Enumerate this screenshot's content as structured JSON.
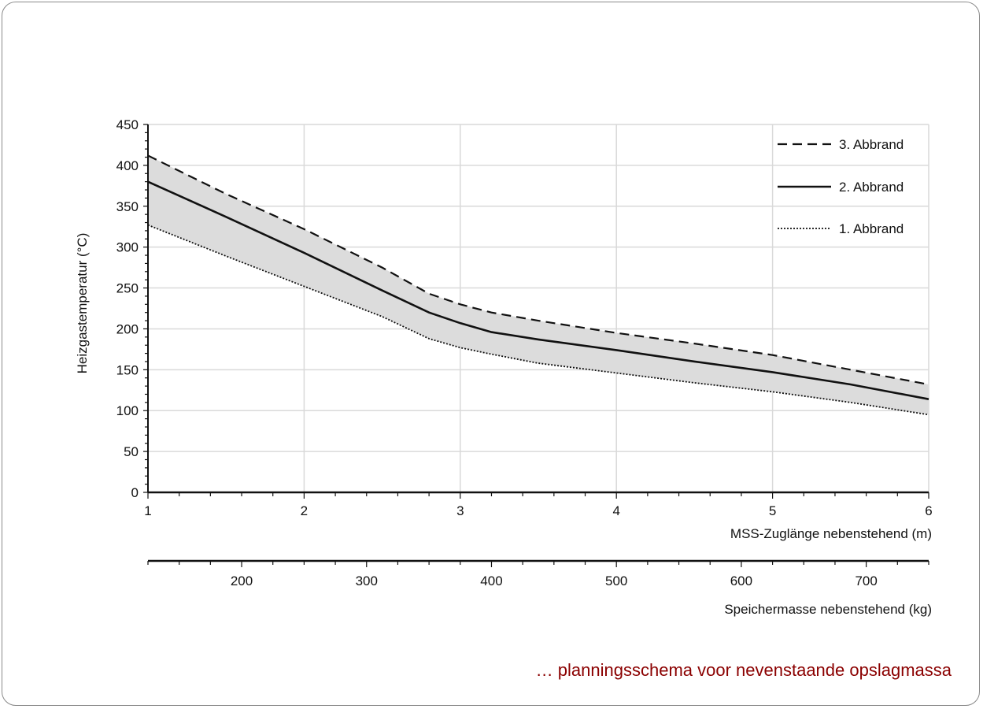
{
  "chart_data": {
    "type": "line",
    "ylabel": "Heizgastemperatur (°C)",
    "xlabel": "MSS-Zuglänge nebenstehend (m)",
    "x2label": "Speichermasse nebenstehend (kg)",
    "xlim": [
      1,
      6
    ],
    "ylim": [
      0,
      450
    ],
    "xticks": [
      "1",
      "2",
      "3",
      "4",
      "5",
      "6"
    ],
    "yticks": [
      "0",
      "50",
      "100",
      "150",
      "200",
      "250",
      "300",
      "350",
      "400",
      "450"
    ],
    "x2ticks": [
      "200",
      "300",
      "400",
      "500",
      "600",
      "700"
    ],
    "x2_range": [
      125,
      750
    ],
    "grid": true,
    "legend_position": "top-right",
    "band_between": [
      "1. Abbrand",
      "3. Abbrand"
    ],
    "series": [
      {
        "name": "3. Abbrand",
        "style": "dashed",
        "x": [
          1,
          1.5,
          2,
          2.5,
          2.8,
          3,
          3.2,
          3.5,
          4,
          4.5,
          5,
          5.5,
          6
        ],
        "y": [
          412,
          365,
          322,
          275,
          243,
          230,
          220,
          210,
          195,
          182,
          168,
          150,
          132
        ]
      },
      {
        "name": "2. Abbrand",
        "style": "solid",
        "x": [
          1,
          1.5,
          2,
          2.5,
          2.8,
          3,
          3.2,
          3.5,
          4,
          4.5,
          5,
          5.5,
          6
        ],
        "y": [
          380,
          337,
          293,
          247,
          220,
          207,
          196,
          187,
          174,
          160,
          147,
          132,
          114
        ]
      },
      {
        "name": "1. Abbrand",
        "style": "dotted",
        "x": [
          1,
          1.5,
          2,
          2.5,
          2.8,
          3,
          3.2,
          3.5,
          4,
          4.5,
          5,
          5.5,
          6
        ],
        "y": [
          327,
          289,
          252,
          215,
          188,
          177,
          169,
          158,
          146,
          134,
          123,
          110,
          95
        ]
      }
    ]
  },
  "caption": "… planningsschema voor nevenstaande opslagmassa",
  "colors": {
    "band": "#dcdcdc",
    "grid": "#d9d9d9",
    "caption": "#8b0000"
  }
}
